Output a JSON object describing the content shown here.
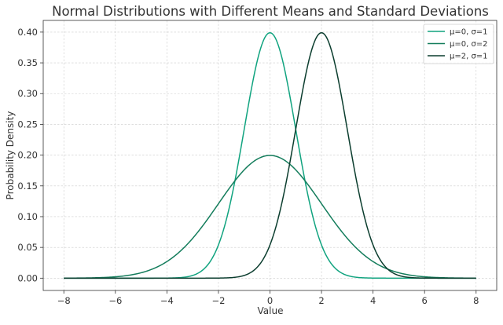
{
  "chart_data": {
    "type": "line",
    "title": "Normal Distributions with Different Means and Standard Deviations",
    "xlabel": "Value",
    "ylabel": "Probability Density",
    "xlim": [
      -8.8,
      8.8
    ],
    "ylim": [
      -0.02,
      0.419
    ],
    "xticks": [
      -8,
      -6,
      -4,
      -2,
      0,
      2,
      4,
      6,
      8
    ],
    "xtick_labels": [
      "−8",
      "−6",
      "−4",
      "−2",
      "0",
      "2",
      "4",
      "6",
      "8"
    ],
    "yticks": [
      0,
      0.05,
      0.1,
      0.15,
      0.2,
      0.25,
      0.3,
      0.35,
      0.4
    ],
    "ytick_labels": [
      "0.00",
      "0.05",
      "0.10",
      "0.15",
      "0.20",
      "0.25",
      "0.30",
      "0.35",
      "0.40"
    ],
    "grid": true,
    "legend_position": "top-right",
    "x_range": [
      -8,
      8
    ],
    "series": [
      {
        "name": "μ=0, σ=1",
        "mu": 0,
        "sigma": 1,
        "color": "#10a37f"
      },
      {
        "name": "μ=0, σ=2",
        "mu": 0,
        "sigma": 2,
        "color": "#147d5c"
      },
      {
        "name": "μ=2, σ=1",
        "mu": 2,
        "sigma": 1,
        "color": "#0b3d2e"
      }
    ]
  }
}
